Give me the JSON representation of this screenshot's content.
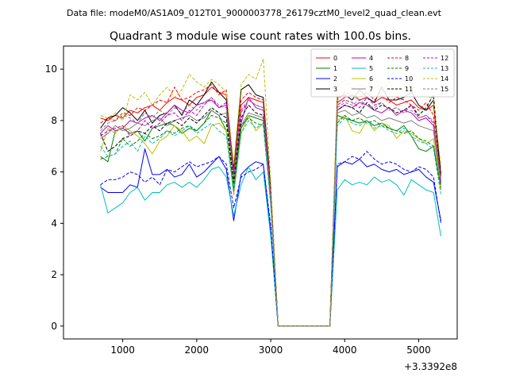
{
  "chart_data": {
    "type": "line",
    "suptitle": "Data file: modeM0/AS1A09_012T01_9000003778_26179cztM0_level2_quad_clean.evt",
    "title": "Quadrant 3 module wise count rates with 100.0s bins.",
    "xlabel": "",
    "ylabel": "",
    "x_offset_label": "+3.3392e8",
    "xlim": [
      200,
      5520
    ],
    "ylim": [
      -0.5,
      10.9
    ],
    "xticks": [
      1000,
      2000,
      3000,
      4000,
      5000
    ],
    "yticks": [
      0,
      2,
      4,
      6,
      8,
      10
    ],
    "grid": false,
    "legend": {
      "location": "top-right",
      "columns": 4
    },
    "gap": {
      "start": 3100,
      "end": 3800,
      "value": 0
    },
    "x": [
      700,
      800,
      900,
      1000,
      1100,
      1200,
      1300,
      1400,
      1500,
      1600,
      1700,
      1800,
      1900,
      2000,
      2100,
      2200,
      2300,
      2400,
      2500,
      2600,
      2700,
      2800,
      2900,
      3000,
      3100,
      3200,
      3300,
      3400,
      3500,
      3600,
      3700,
      3800,
      3900,
      4000,
      4100,
      4200,
      4300,
      4400,
      4500,
      4600,
      4700,
      4800,
      4900,
      5000,
      5100,
      5200,
      5300
    ],
    "series": [
      {
        "name": "0",
        "color": "#ff0000",
        "dash": "solid",
        "values": [
          8.1,
          8.0,
          8.2,
          8.1,
          8.4,
          8.3,
          8.5,
          8.6,
          8.4,
          8.7,
          8.9,
          8.8,
          8.6,
          8.9,
          9.0,
          9.3,
          9.1,
          9.0,
          5.8,
          8.6,
          8.9,
          8.8,
          8.7,
          5.0,
          0,
          0,
          0,
          0,
          0,
          0,
          0,
          0,
          8.7,
          8.9,
          9.0,
          8.8,
          8.9,
          8.7,
          8.9,
          8.8,
          8.6,
          8.7,
          8.8,
          8.5,
          8.4,
          8.6,
          5.9
        ]
      },
      {
        "name": "1",
        "color": "#008000",
        "dash": "solid",
        "values": [
          6.6,
          6.4,
          7.6,
          7.7,
          7.5,
          7.6,
          7.2,
          7.7,
          7.8,
          7.9,
          7.8,
          7.5,
          7.7,
          7.6,
          7.9,
          8.4,
          8.2,
          7.6,
          5.3,
          7.7,
          8.2,
          8.1,
          8.0,
          4.9,
          0,
          0,
          0,
          0,
          0,
          0,
          0,
          0,
          8.2,
          8.1,
          8.0,
          7.9,
          8.0,
          7.8,
          7.9,
          7.7,
          7.6,
          7.8,
          7.4,
          6.9,
          6.8,
          7.0,
          5.3
        ]
      },
      {
        "name": "2",
        "color": "#0000ff",
        "dash": "solid",
        "values": [
          5.4,
          5.2,
          5.2,
          5.2,
          5.5,
          5.4,
          6.9,
          5.9,
          5.9,
          6.1,
          5.8,
          5.9,
          6.3,
          5.8,
          6.0,
          6.3,
          6.6,
          6.1,
          4.1,
          5.9,
          6.2,
          6.4,
          6.3,
          3.7,
          0,
          0,
          0,
          0,
          0,
          0,
          0,
          0,
          6.2,
          6.4,
          6.3,
          6.5,
          6.2,
          6.3,
          6.1,
          6.0,
          6.1,
          5.9,
          6.0,
          6.1,
          5.8,
          5.6,
          4.1
        ]
      },
      {
        "name": "3",
        "color": "#000000",
        "dash": "solid",
        "values": [
          7.7,
          8.1,
          8.2,
          8.5,
          8.3,
          8.0,
          8.4,
          7.9,
          8.2,
          8.3,
          8.6,
          8.2,
          8.8,
          8.6,
          9.0,
          9.5,
          9.1,
          8.8,
          6.1,
          9.2,
          9.4,
          9.0,
          8.9,
          5.4,
          0,
          0,
          0,
          0,
          0,
          0,
          0,
          0,
          8.9,
          9.0,
          8.8,
          9.2,
          8.9,
          8.7,
          9.3,
          8.8,
          8.8,
          8.9,
          9.1,
          8.6,
          8.4,
          8.8,
          5.9
        ]
      },
      {
        "name": "4",
        "color": "#bf00bf",
        "dash": "solid",
        "values": [
          7.5,
          7.8,
          7.6,
          7.7,
          8.0,
          7.9,
          8.1,
          8.2,
          8.0,
          8.3,
          8.6,
          8.4,
          8.3,
          8.6,
          8.7,
          8.8,
          8.5,
          8.6,
          5.9,
          7.9,
          8.9,
          8.5,
          8.4,
          5.0,
          0,
          0,
          0,
          0,
          0,
          0,
          0,
          0,
          8.4,
          8.6,
          8.5,
          8.7,
          8.6,
          8.4,
          8.3,
          8.5,
          8.2,
          8.4,
          8.3,
          8.0,
          8.1,
          7.8,
          5.6
        ]
      },
      {
        "name": "5",
        "color": "#00bfbf",
        "dash": "solid",
        "values": [
          5.5,
          4.4,
          4.6,
          4.8,
          5.2,
          5.4,
          4.9,
          5.2,
          5.2,
          5.5,
          5.6,
          5.4,
          5.6,
          5.4,
          5.7,
          6.1,
          6.2,
          5.8,
          4.3,
          5.5,
          6.2,
          5.7,
          6.0,
          3.5,
          0,
          0,
          0,
          0,
          0,
          0,
          0,
          0,
          5.3,
          5.7,
          5.5,
          5.6,
          5.5,
          5.8,
          5.6,
          5.7,
          5.5,
          5.1,
          5.7,
          5.5,
          5.3,
          5.2,
          3.5
        ]
      },
      {
        "name": "6",
        "color": "#bfbf00",
        "dash": "solid",
        "values": [
          6.8,
          7.7,
          7.5,
          7.8,
          7.6,
          7.4,
          7.1,
          6.7,
          7.2,
          7.4,
          7.8,
          7.6,
          7.2,
          7.4,
          7.1,
          7.8,
          7.9,
          7.6,
          5.1,
          7.5,
          8.2,
          7.6,
          7.9,
          4.8,
          0,
          0,
          0,
          0,
          0,
          0,
          0,
          0,
          8.0,
          8.2,
          7.6,
          7.5,
          8.0,
          7.6,
          7.9,
          7.8,
          7.3,
          7.6,
          7.5,
          7.3,
          7.1,
          7.3,
          5.3
        ]
      },
      {
        "name": "7",
        "color": "#808080",
        "dash": "solid",
        "values": [
          7.3,
          7.5,
          7.8,
          7.6,
          7.7,
          7.9,
          7.8,
          8.0,
          8.1,
          7.8,
          8.0,
          8.1,
          8.2,
          8.0,
          8.1,
          8.4,
          8.2,
          8.3,
          5.7,
          7.8,
          8.3,
          8.2,
          8.1,
          4.9,
          0,
          0,
          0,
          0,
          0,
          0,
          0,
          0,
          8.3,
          8.4,
          8.2,
          8.3,
          8.1,
          8.2,
          8.0,
          8.1,
          8.0,
          7.9,
          8.0,
          7.8,
          7.7,
          7.6,
          5.5
        ]
      },
      {
        "name": "8",
        "color": "#ff0000",
        "dash": "dashed",
        "values": [
          7.9,
          8.1,
          8.0,
          8.3,
          8.2,
          8.5,
          8.4,
          8.6,
          8.8,
          8.7,
          9.3,
          8.8,
          8.9,
          9.1,
          9.2,
          9.4,
          9.0,
          9.2,
          6.0,
          8.8,
          9.1,
          8.9,
          8.8,
          5.2,
          0,
          0,
          0,
          0,
          0,
          0,
          0,
          0,
          8.8,
          9.1,
          9.0,
          8.9,
          9.1,
          8.8,
          9.0,
          8.7,
          8.9,
          8.8,
          8.6,
          8.4,
          8.7,
          8.2,
          5.8
        ]
      },
      {
        "name": "9",
        "color": "#008000",
        "dash": "dashed",
        "values": [
          6.5,
          6.6,
          6.7,
          7.3,
          7.0,
          7.2,
          7.5,
          7.3,
          7.4,
          7.6,
          7.5,
          7.7,
          7.8,
          7.6,
          7.9,
          8.2,
          8.1,
          7.9,
          5.4,
          7.8,
          8.1,
          7.9,
          7.8,
          4.8,
          0,
          0,
          0,
          0,
          0,
          0,
          0,
          0,
          7.9,
          8.2,
          8.0,
          8.1,
          7.9,
          8.0,
          7.8,
          7.7,
          7.6,
          7.5,
          7.6,
          7.3,
          7.2,
          7.0,
          5.4
        ]
      },
      {
        "name": "10",
        "color": "#0000ff",
        "dash": "dashed",
        "values": [
          5.5,
          5.7,
          5.7,
          5.8,
          6.0,
          5.9,
          5.6,
          5.8,
          5.5,
          6.1,
          6.0,
          6.2,
          6.4,
          6.2,
          6.3,
          6.4,
          6.6,
          6.3,
          4.6,
          5.8,
          6.0,
          6.1,
          6.3,
          3.9,
          0,
          0,
          0,
          0,
          0,
          0,
          0,
          0,
          6.3,
          6.4,
          6.6,
          6.5,
          6.8,
          6.5,
          6.3,
          6.4,
          6.3,
          6.1,
          6.0,
          6.2,
          6.1,
          5.8,
          4.0
        ]
      },
      {
        "name": "11",
        "color": "#000000",
        "dash": "dashed",
        "values": [
          7.5,
          6.8,
          7.0,
          7.3,
          7.4,
          7.6,
          7.5,
          7.8,
          7.6,
          7.9,
          8.0,
          7.8,
          8.1,
          7.9,
          8.2,
          8.5,
          8.3,
          8.1,
          5.6,
          8.1,
          8.6,
          8.3,
          8.2,
          5.0,
          0,
          0,
          0,
          0,
          0,
          0,
          0,
          0,
          8.4,
          8.6,
          8.5,
          8.3,
          8.7,
          8.4,
          8.6,
          8.5,
          8.3,
          8.4,
          8.6,
          8.2,
          8.5,
          9.0,
          5.6
        ]
      },
      {
        "name": "12",
        "color": "#bf00bf",
        "dash": "dashed",
        "values": [
          7.4,
          7.6,
          7.7,
          7.8,
          7.4,
          7.6,
          8.0,
          7.7,
          7.9,
          8.2,
          8.3,
          8.0,
          8.4,
          8.2,
          8.6,
          8.9,
          8.5,
          8.7,
          5.9,
          8.3,
          8.8,
          8.6,
          8.5,
          5.1,
          0,
          0,
          0,
          0,
          0,
          0,
          0,
          0,
          8.6,
          8.8,
          8.7,
          8.5,
          8.9,
          8.6,
          8.7,
          8.4,
          8.5,
          8.3,
          8.6,
          8.1,
          8.2,
          7.9,
          5.6
        ]
      },
      {
        "name": "13",
        "color": "#00bfbf",
        "dash": "dashed",
        "values": [
          7.0,
          6.6,
          6.7,
          7.0,
          7.2,
          6.8,
          7.4,
          7.1,
          7.3,
          7.6,
          7.4,
          7.6,
          7.8,
          7.5,
          7.7,
          7.9,
          7.6,
          7.4,
          5.2,
          7.5,
          8.0,
          7.7,
          7.9,
          4.7,
          0,
          0,
          0,
          0,
          0,
          0,
          0,
          0,
          7.8,
          8.1,
          7.9,
          7.8,
          8.0,
          7.7,
          7.8,
          7.6,
          7.5,
          7.7,
          7.4,
          7.2,
          7.1,
          6.9,
          5.1
        ]
      },
      {
        "name": "14",
        "color": "#bfbf00",
        "dash": "dashed",
        "values": [
          8.2,
          8.1,
          8.3,
          8.0,
          9.0,
          8.8,
          9.1,
          8.6,
          9.0,
          9.3,
          8.9,
          9.2,
          9.8,
          9.5,
          9.3,
          9.6,
          9.4,
          9.1,
          6.3,
          9.4,
          9.8,
          9.6,
          10.4,
          5.6,
          0,
          0,
          0,
          0,
          0,
          0,
          0,
          0,
          9.3,
          9.6,
          9.2,
          9.4,
          9.3,
          9.7,
          9.2,
          9.5,
          9.1,
          9.3,
          9.4,
          8.9,
          9.0,
          8.8,
          6.2
        ]
      },
      {
        "name": "15",
        "color": "#808080",
        "dash": "dashed",
        "values": [
          7.6,
          7.9,
          8.0,
          8.2,
          8.1,
          7.9,
          8.3,
          8.1,
          8.4,
          8.2,
          8.5,
          8.3,
          8.6,
          8.4,
          8.7,
          8.9,
          8.6,
          8.5,
          5.8,
          8.4,
          8.8,
          8.6,
          8.5,
          5.0,
          0,
          0,
          0,
          0,
          0,
          0,
          0,
          0,
          8.5,
          8.7,
          8.6,
          8.8,
          8.6,
          8.5,
          8.7,
          8.4,
          8.5,
          8.3,
          8.4,
          8.1,
          8.2,
          8.0,
          5.7
        ]
      }
    ]
  }
}
